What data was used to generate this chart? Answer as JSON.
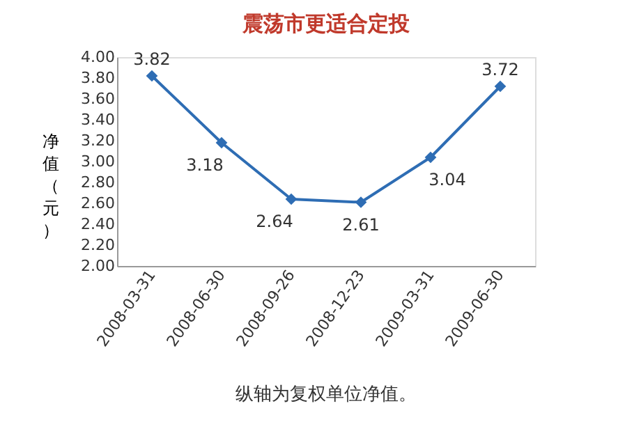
{
  "chart_data": {
    "type": "line",
    "title": "震荡市更适合定投",
    "ylabel": "净值（元）",
    "categories": [
      "2008-03-31",
      "2008-06-30",
      "2008-09-26",
      "2008-12-23",
      "2009-03-31",
      "2009-06-30"
    ],
    "series": [
      {
        "color": "#2e6db4",
        "values": [
          3.82,
          3.18,
          2.64,
          2.61,
          3.04,
          3.72
        ]
      }
    ],
    "ylim": [
      2.0,
      4.0
    ],
    "yticks": [
      {
        "value": 2.0,
        "label": "2.00"
      },
      {
        "value": 2.2,
        "label": "2.20"
      },
      {
        "value": 2.4,
        "label": "2.40"
      },
      {
        "value": 2.6,
        "label": "2.60"
      },
      {
        "value": 2.8,
        "label": "2.80"
      },
      {
        "value": 3.0,
        "label": "3.00"
      },
      {
        "value": 3.2,
        "label": "3.20"
      },
      {
        "value": 3.4,
        "label": "3.40"
      },
      {
        "value": 3.6,
        "label": "3.60"
      },
      {
        "value": 3.8,
        "label": "3.80"
      },
      {
        "value": 4.0,
        "label": "4.00"
      }
    ],
    "marker": "diamond",
    "data_labels": true,
    "grid": false,
    "annotations": [
      "纵轴为复权单位净值。"
    ]
  }
}
